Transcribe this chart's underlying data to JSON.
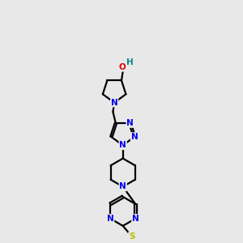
{
  "bg_color": "#e8e8e8",
  "bond_color": "#000000",
  "N_color": "#0000ee",
  "O_color": "#dd0000",
  "S_color": "#bbbb00",
  "H_color": "#008888",
  "line_width": 1.6,
  "figsize": [
    3.0,
    3.0
  ],
  "dpi": 100,
  "xlim": [
    0,
    10
  ],
  "ylim": [
    0,
    17
  ]
}
